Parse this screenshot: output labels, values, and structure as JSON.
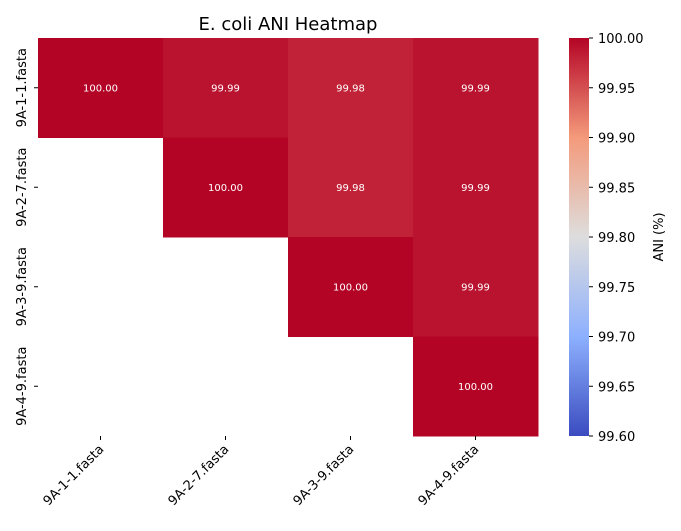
{
  "chart_data": {
    "type": "heatmap",
    "title": "E. coli ANI Heatmap",
    "row_labels": [
      "9A-1-1.fasta",
      "9A-2-7.fasta",
      "9A-3-9.fasta",
      "9A-4-9.fasta"
    ],
    "col_labels": [
      "9A-1-1.fasta",
      "9A-2-7.fasta",
      "9A-3-9.fasta",
      "9A-4-9.fasta"
    ],
    "values": [
      [
        100.0,
        99.99,
        99.98,
        99.99
      ],
      [
        null,
        100.0,
        99.98,
        99.99
      ],
      [
        null,
        null,
        100.0,
        99.99
      ],
      [
        null,
        null,
        null,
        100.0
      ]
    ],
    "value_labels": [
      [
        "100.00",
        "99.99",
        "99.98",
        "99.99"
      ],
      [
        null,
        "100.00",
        "99.98",
        "99.99"
      ],
      [
        null,
        null,
        "100.00",
        "99.99"
      ],
      [
        null,
        null,
        null,
        "100.00"
      ]
    ],
    "colorbar": {
      "label": "ANI (%)",
      "min": 99.6,
      "max": 100.0,
      "ticks": [
        "100.00",
        "99.95",
        "99.90",
        "99.85",
        "99.80",
        "99.75",
        "99.70",
        "99.65",
        "99.60"
      ],
      "colormap": "coolwarm"
    },
    "cell_text_color": "#ffffff"
  }
}
